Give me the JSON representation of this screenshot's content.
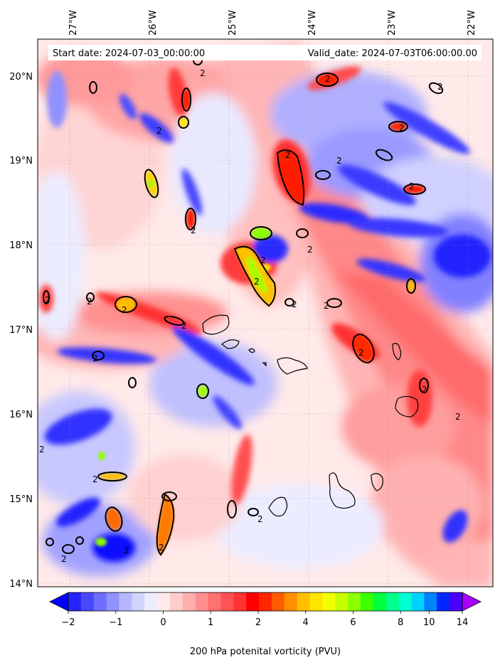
{
  "header": {
    "start_date": "Start date: 2024-07-03_00:00:00",
    "valid_date": "Valid_date: 2024-07-03T06:00:00.00"
  },
  "axes": {
    "lon_labels": [
      "27°W",
      "26°W",
      "25°W",
      "24°W",
      "23°W",
      "22°W"
    ],
    "lat_labels": [
      "20°N",
      "19°N",
      "18°N",
      "17°N",
      "16°N",
      "15°N",
      "14°N"
    ]
  },
  "contour_labels": [
    "2",
    "2",
    "2",
    "2",
    "2",
    "2",
    "2",
    "2",
    "2",
    "2",
    "2",
    "2",
    "2",
    "2",
    "2",
    "2",
    "2",
    "2",
    "2",
    "2",
    "2",
    "2",
    "2",
    "2",
    "2",
    "2",
    "2",
    "2"
  ],
  "colorbar": {
    "label": "200 hPa potenital vorticity (PVU)",
    "ticks": [
      "−2",
      "−1",
      "0",
      "1",
      "2",
      "4",
      "6",
      "8",
      "10",
      "14"
    ],
    "colors": [
      "#0000ff",
      "#2424ff",
      "#4848ff",
      "#6d6dff",
      "#9191ff",
      "#b6b6ff",
      "#d2d2ff",
      "#ececff",
      "#ffeaea",
      "#ffcccc",
      "#ffadad",
      "#ff8f8f",
      "#ff7070",
      "#ff5252",
      "#ff3333",
      "#ff0000",
      "#ff2500",
      "#ff5b00",
      "#ff8f00",
      "#ffbf00",
      "#ffe400",
      "#f2ff00",
      "#c8ff00",
      "#8cff00",
      "#3cff00",
      "#00ff3c",
      "#00ff8c",
      "#00ffd0",
      "#00d2ff",
      "#0082ff",
      "#0028ff",
      "#4a00ff",
      "#aa00ff"
    ]
  }
}
